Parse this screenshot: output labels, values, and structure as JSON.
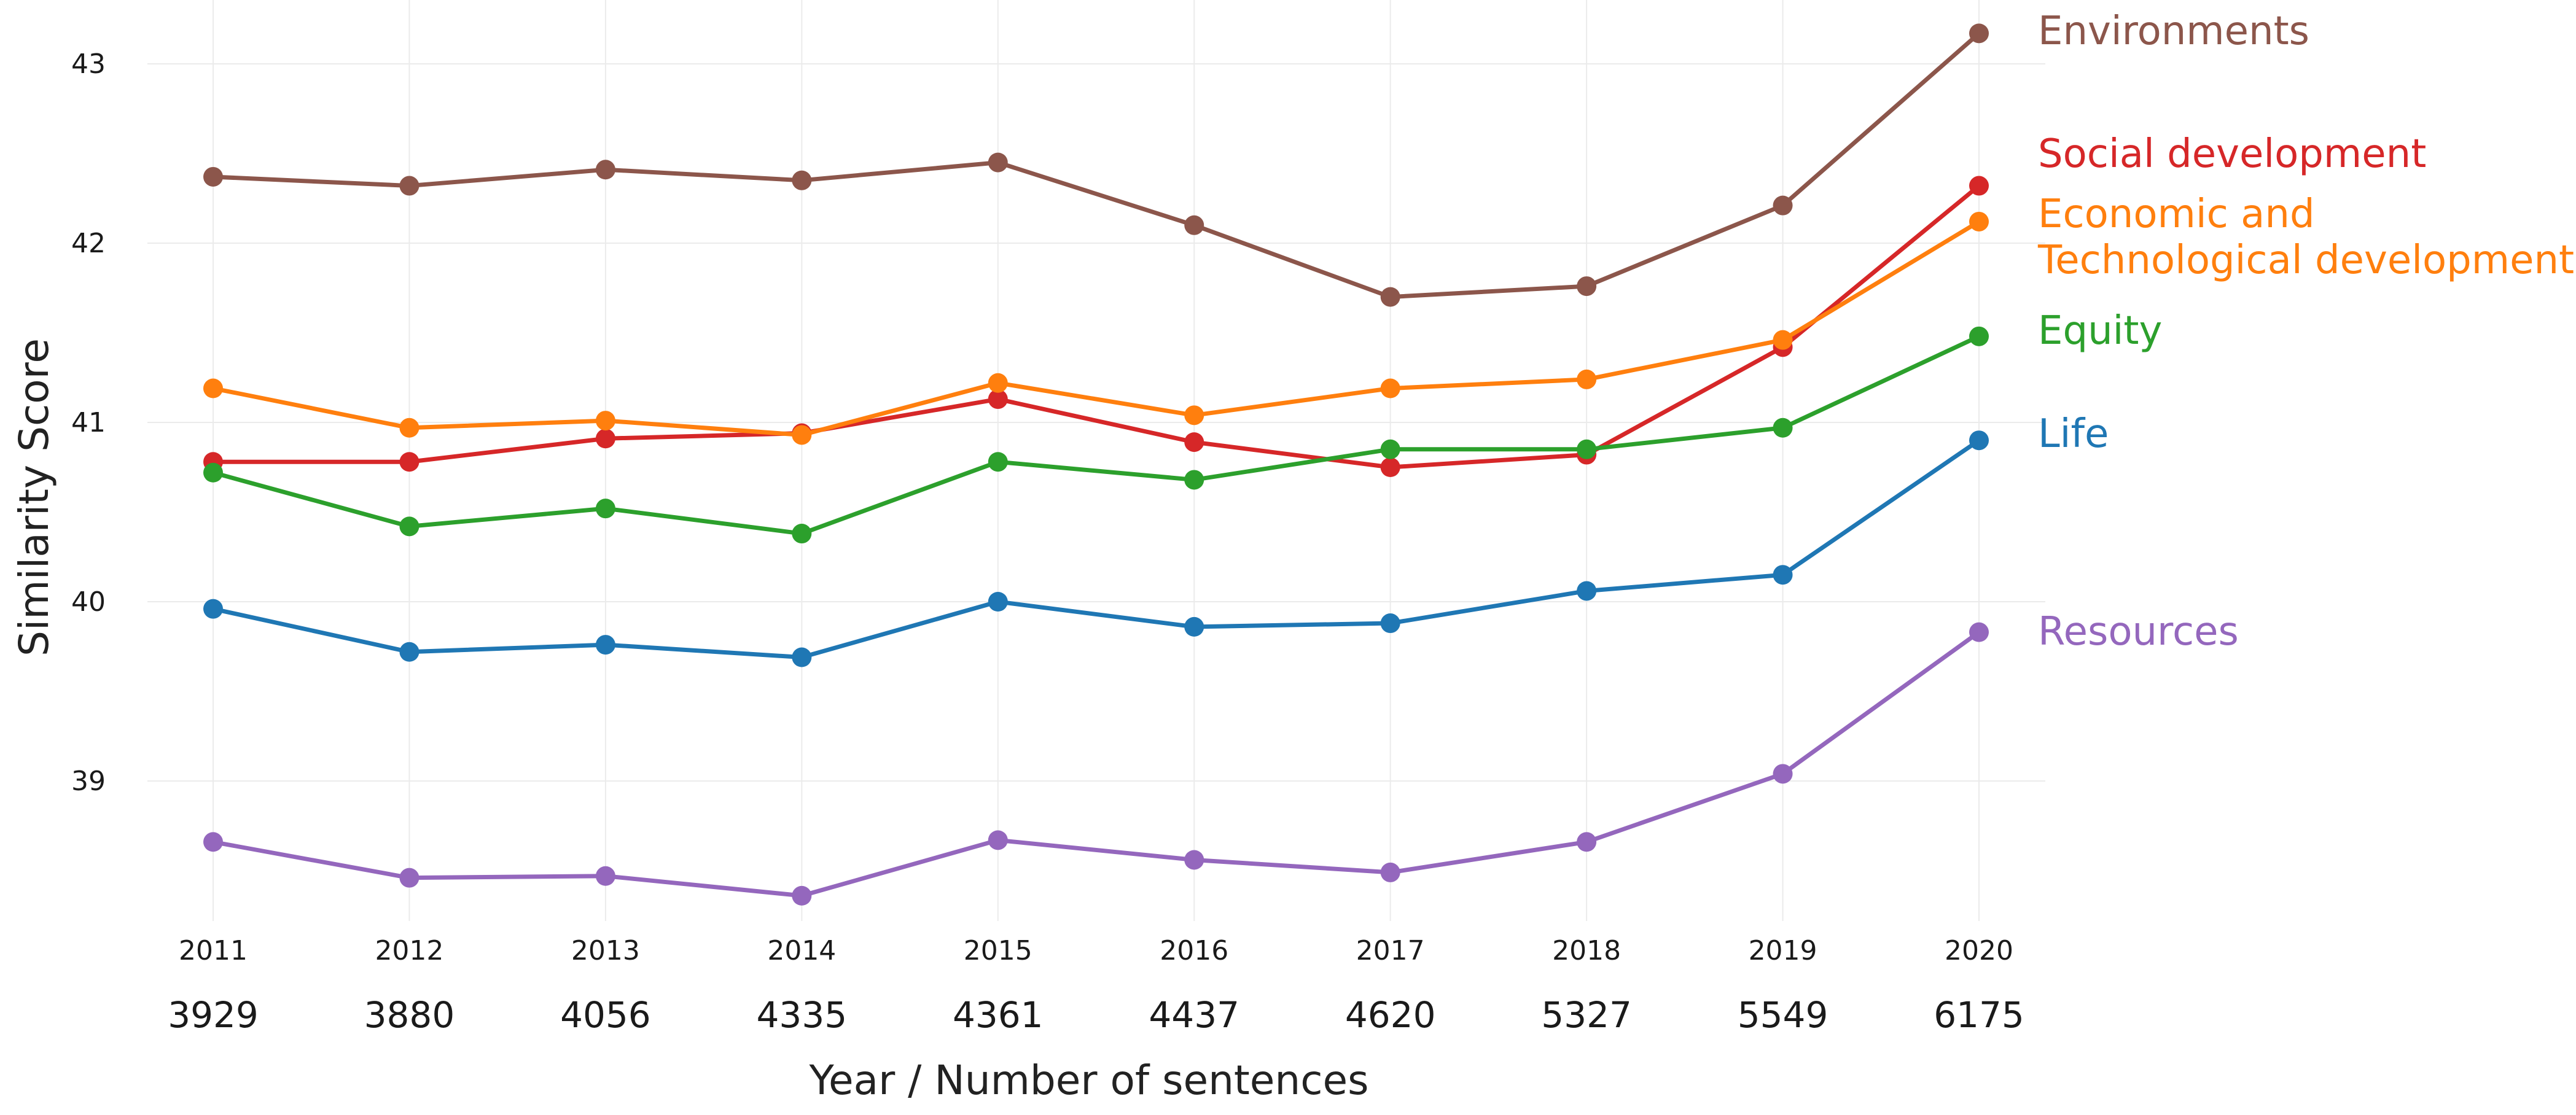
{
  "chart_data": {
    "type": "line",
    "title": "",
    "xlabel": "Year / Number of sentences",
    "ylabel": "Similarity Score",
    "ylim": [
      38.2,
      43.2
    ],
    "yticks": [
      39,
      40,
      41,
      42,
      43
    ],
    "ytick_labels": [
      "39",
      "40",
      "41",
      "42",
      "43"
    ],
    "x": [
      "2011",
      "2012",
      "2013",
      "2014",
      "2015",
      "2016",
      "2017",
      "2018",
      "2019",
      "2020"
    ],
    "sentence_counts": [
      "3929",
      "3880",
      "4056",
      "4335",
      "4361",
      "4437",
      "4620",
      "5327",
      "5549",
      "6175"
    ],
    "grid": true,
    "legend": "direct labels at right end of lines",
    "series": [
      {
        "name": "Environments",
        "label_lines": [
          "Environments"
        ],
        "color": "#8c564b",
        "values": [
          42.37,
          42.32,
          42.41,
          42.35,
          42.45,
          42.1,
          41.7,
          41.76,
          42.21,
          43.17
        ]
      },
      {
        "name": "Social development",
        "label_lines": [
          "Social development"
        ],
        "color": "#d62728",
        "values": [
          40.78,
          40.78,
          40.91,
          40.94,
          41.13,
          40.89,
          40.75,
          40.82,
          41.42,
          42.32
        ]
      },
      {
        "name": "Economic and Technological development",
        "label_lines": [
          "Economic and",
          "Technological development"
        ],
        "color": "#ff7f0e",
        "values": [
          41.19,
          40.97,
          41.01,
          40.93,
          41.22,
          41.04,
          41.19,
          41.24,
          41.46,
          42.12
        ]
      },
      {
        "name": "Equity",
        "label_lines": [
          "Equity"
        ],
        "color": "#2ca02c",
        "values": [
          40.72,
          40.42,
          40.52,
          40.38,
          40.78,
          40.68,
          40.85,
          40.85,
          40.97,
          41.48
        ]
      },
      {
        "name": "Life",
        "label_lines": [
          "Life"
        ],
        "color": "#1f77b4",
        "values": [
          39.96,
          39.72,
          39.76,
          39.69,
          40.0,
          39.86,
          39.88,
          40.06,
          40.15,
          40.9
        ]
      },
      {
        "name": "Resources",
        "label_lines": [
          "Resources"
        ],
        "color": "#9467bd",
        "values": [
          38.66,
          38.46,
          38.47,
          38.36,
          38.67,
          38.56,
          38.49,
          38.66,
          39.04,
          39.83
        ]
      }
    ]
  }
}
